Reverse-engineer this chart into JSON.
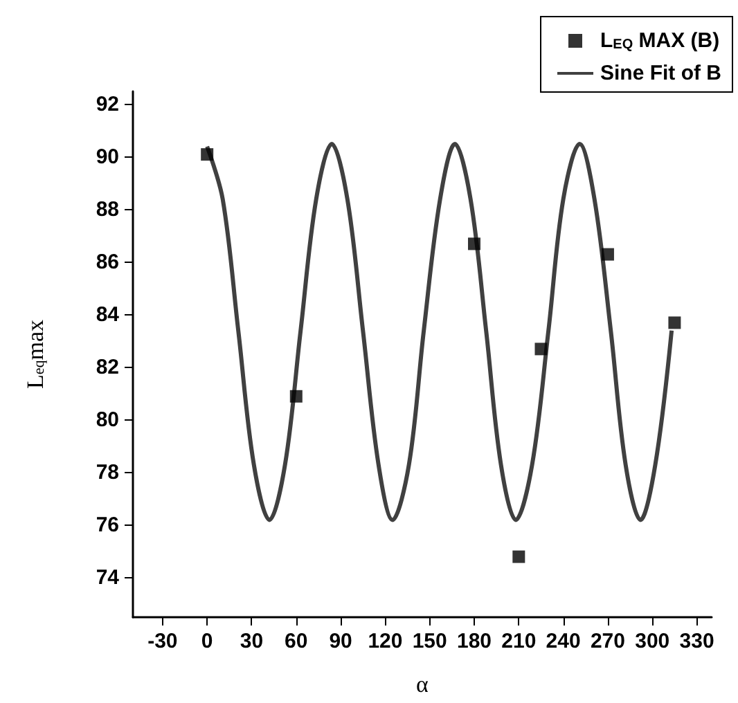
{
  "chart_data": {
    "type": "scatter",
    "xlabel": "α",
    "ylabel": "L$_{eq}$max",
    "xlim": [
      -50,
      340
    ],
    "xticks": [
      -30,
      0,
      30,
      60,
      90,
      120,
      150,
      180,
      210,
      240,
      270,
      300,
      330
    ],
    "ylim": [
      72.5,
      92.5
    ],
    "yticks": [
      74,
      76,
      78,
      80,
      82,
      84,
      86,
      88,
      90,
      92
    ],
    "legend": "top right",
    "grid": false,
    "series": [
      {
        "name": "L$_{EQ}$ MAX (B)",
        "marker": "square",
        "color": "#000000",
        "x": [
          0,
          60,
          180,
          210,
          225,
          270,
          315
        ],
        "values": [
          90.1,
          80.9,
          86.7,
          74.8,
          82.7,
          86.3,
          83.7
        ]
      },
      {
        "name": "Sine Fit of B",
        "type": "line",
        "marker": "none",
        "color": "#404040",
        "x": [
          0,
          10.5,
          21,
          31.5,
          42,
          52.5,
          63,
          73.5,
          84,
          94.5,
          105,
          115.5,
          125,
          136,
          146,
          157,
          167,
          177.5,
          188,
          198,
          208,
          219,
          230,
          240,
          251,
          261,
          272,
          282,
          292,
          302,
          313
        ],
        "values": [
          90.4,
          88.4,
          83.4,
          78.3,
          76.2,
          78.3,
          83.4,
          88.4,
          90.5,
          88.4,
          83.4,
          78.3,
          76.2,
          78.3,
          83.4,
          88.4,
          90.5,
          88.4,
          83.4,
          78.3,
          76.2,
          78.3,
          83.4,
          88.4,
          90.5,
          88.4,
          83.4,
          78.3,
          76.2,
          78.3,
          83.4
        ]
      }
    ]
  }
}
